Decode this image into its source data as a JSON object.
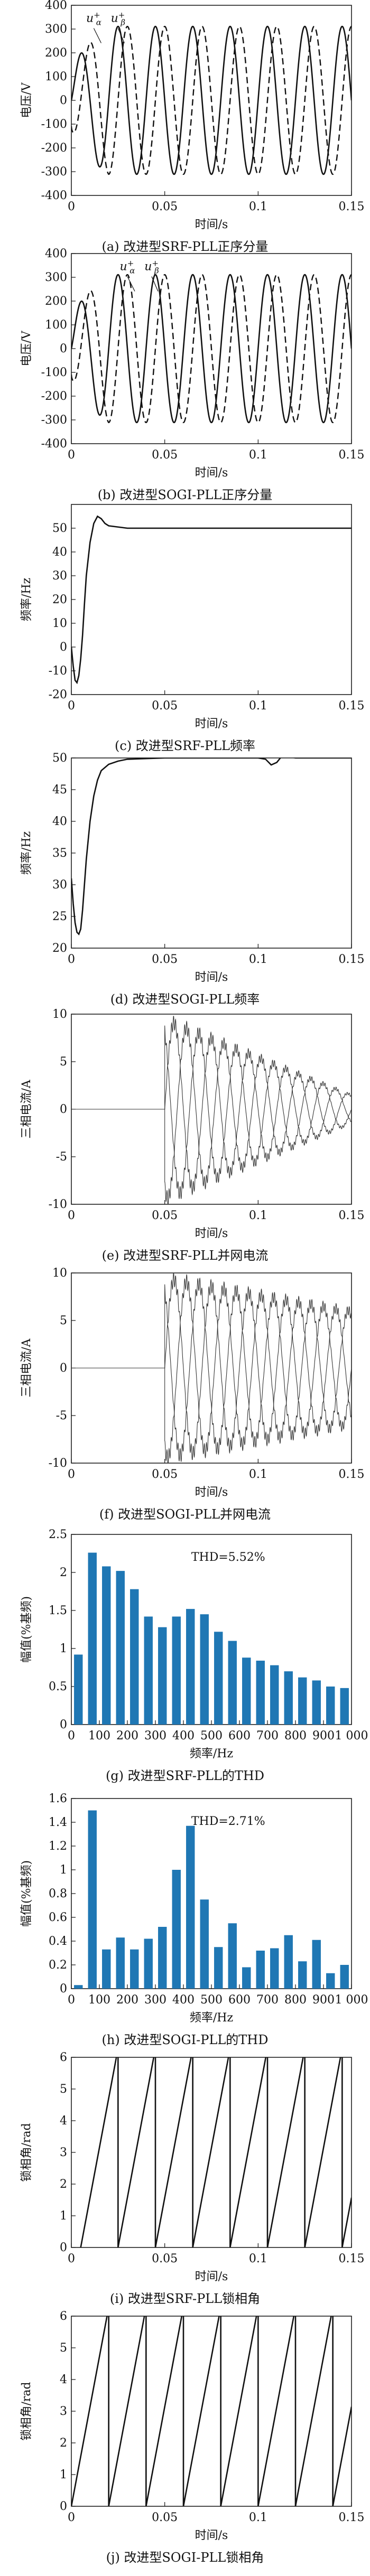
{
  "chart_data": [
    {
      "id": "a",
      "type": "line",
      "caption": "(a) 改进型SRF-PLL正序分量",
      "xlabel": "时间/s",
      "ylabel": "电压/V",
      "xlim": [
        0,
        0.15
      ],
      "ylim": [
        -400,
        400
      ],
      "xticks": [
        0,
        0.05,
        0.1,
        0.15
      ],
      "xtick_labels": [
        "0",
        "0.05",
        "0.1",
        "0.15"
      ],
      "yticks": [
        -400,
        -300,
        -200,
        -100,
        0,
        100,
        200,
        300,
        400
      ],
      "ytick_labels": [
        "-400",
        "-300",
        "-200",
        "-100",
        "0",
        "100",
        "200",
        "300",
        "400"
      ],
      "grid": false,
      "annotations": [
        {
          "text": "u",
          "sub": "α",
          "sup": "+",
          "x": 0.012,
          "y": 330
        },
        {
          "text": "u",
          "sub": "β",
          "sup": "+",
          "x": 0.025,
          "y": 330
        }
      ],
      "series": [
        {
          "style": "solid",
          "kind": "sine",
          "amplitude": 311,
          "freq": 50,
          "phase_deg": 0,
          "settle_time": 0.02,
          "x_start": 0,
          "x_end": 0.15
        },
        {
          "style": "dashed",
          "kind": "sine",
          "amplitude": 311,
          "freq": 50,
          "phase_deg": -90,
          "settle_time": 0.02,
          "x_start": 0,
          "x_end": 0.15
        }
      ]
    },
    {
      "id": "b",
      "type": "line",
      "caption": "(b) 改进型SOGI-PLL正序分量",
      "xlabel": "时间/s",
      "ylabel": "电压/V",
      "xlim": [
        0,
        0.15
      ],
      "ylim": [
        -400,
        400
      ],
      "xticks": [
        0,
        0.05,
        0.1,
        0.15
      ],
      "xtick_labels": [
        "0",
        "0.05",
        "0.1",
        "0.15"
      ],
      "yticks": [
        -400,
        -300,
        -200,
        -100,
        0,
        100,
        200,
        300,
        400
      ],
      "ytick_labels": [
        "-400",
        "-300",
        "-200",
        "-100",
        "0",
        "100",
        "200",
        "300",
        "400"
      ],
      "grid": false,
      "annotations": [
        {
          "text": "u",
          "sub": "α",
          "sup": "+",
          "x": 0.03,
          "y": 330
        },
        {
          "text": "u",
          "sub": "β",
          "sup": "+",
          "x": 0.043,
          "y": 330
        }
      ],
      "series": [
        {
          "style": "solid",
          "kind": "sine",
          "amplitude": 311,
          "freq": 50,
          "phase_deg": 0,
          "settle_time": 0.02,
          "x_start": 0,
          "x_end": 0.15
        },
        {
          "style": "dashed",
          "kind": "sine",
          "amplitude": 311,
          "freq": 50,
          "phase_deg": -90,
          "settle_time": 0.02,
          "x_start": 0,
          "x_end": 0.15
        }
      ]
    },
    {
      "id": "c",
      "type": "line",
      "caption": "(c) 改进型SRF-PLL频率",
      "xlabel": "时间/s",
      "ylabel": "频率/Hz",
      "xlim": [
        0,
        0.15
      ],
      "ylim": [
        -20,
        60
      ],
      "xticks": [
        0,
        0.05,
        0.1,
        0.15
      ],
      "xtick_labels": [
        "0",
        "0.05",
        "0.1",
        "0.15"
      ],
      "yticks": [
        -20,
        -10,
        0,
        10,
        20,
        30,
        40,
        50
      ],
      "ytick_labels": [
        "-20",
        "-10",
        "0",
        "10",
        "20",
        "30",
        "40",
        "50"
      ],
      "grid": false,
      "annotations": [],
      "series": [
        {
          "style": "solid",
          "kind": "points",
          "x": [
            0,
            0.001,
            0.002,
            0.003,
            0.004,
            0.005,
            0.006,
            0.007,
            0.008,
            0.01,
            0.012,
            0.014,
            0.016,
            0.018,
            0.02,
            0.025,
            0.03,
            0.05,
            0.1,
            0.15
          ],
          "y": [
            0,
            -8,
            -14,
            -15,
            -12,
            -5,
            5,
            18,
            30,
            44,
            52,
            55,
            54,
            52,
            51,
            50.5,
            50,
            50,
            50,
            50
          ]
        }
      ]
    },
    {
      "id": "d",
      "type": "line",
      "caption": "(d) 改进型SOGI-PLL频率",
      "xlabel": "时间/s",
      "ylabel": "频率/Hz",
      "xlim": [
        0,
        0.15
      ],
      "ylim": [
        20,
        50
      ],
      "xticks": [
        0,
        0.05,
        0.1,
        0.15
      ],
      "xtick_labels": [
        "0",
        "0.05",
        "0.1",
        "0.15"
      ],
      "yticks": [
        20,
        25,
        30,
        35,
        40,
        45,
        50
      ],
      "ytick_labels": [
        "20",
        "25",
        "30",
        "35",
        "40",
        "45",
        "50"
      ],
      "grid": false,
      "annotations": [],
      "series": [
        {
          "style": "solid",
          "kind": "points",
          "x": [
            0,
            0.001,
            0.002,
            0.003,
            0.004,
            0.005,
            0.006,
            0.007,
            0.008,
            0.01,
            0.012,
            0.014,
            0.016,
            0.02,
            0.025,
            0.03,
            0.05,
            0.1,
            0.104,
            0.107,
            0.11,
            0.113,
            0.12,
            0.15
          ],
          "y": [
            31,
            27,
            24,
            22.5,
            22.2,
            23,
            26,
            30,
            34,
            40,
            44,
            46.5,
            48,
            49,
            49.5,
            49.8,
            50,
            50,
            49.8,
            48.9,
            49.3,
            50.4,
            50,
            50
          ]
        }
      ]
    },
    {
      "id": "e",
      "type": "line",
      "caption": "(e) 改进型SRF-PLL并网电流",
      "xlabel": "时间/s",
      "ylabel": "三相电流/A",
      "xlim": [
        0,
        0.15
      ],
      "ylim": [
        -10,
        10
      ],
      "xticks": [
        0,
        0.05,
        0.1,
        0.15
      ],
      "xtick_labels": [
        "0",
        "0.05",
        "0.1",
        "0.15"
      ],
      "yticks": [
        -10,
        -5,
        0,
        5,
        10
      ],
      "ytick_labels": [
        "-10",
        "-5",
        "0",
        "5",
        "10"
      ],
      "grid": false,
      "annotations": [],
      "series": [
        {
          "style": "thin",
          "kind": "current",
          "start": 0.05,
          "amplitude": 9.5,
          "decay_to": 1.5,
          "freq": 50,
          "phase_deg": 0
        },
        {
          "style": "thin",
          "kind": "current",
          "start": 0.05,
          "amplitude": 9.5,
          "decay_to": 1.5,
          "freq": 50,
          "phase_deg": -120
        },
        {
          "style": "thin",
          "kind": "current",
          "start": 0.05,
          "amplitude": 9.5,
          "decay_to": 1.5,
          "freq": 50,
          "phase_deg": 120
        }
      ]
    },
    {
      "id": "f",
      "type": "line",
      "caption": "(f) 改进型SOGI-PLL并网电流",
      "xlabel": "时间/s",
      "ylabel": "三相电流/A",
      "xlim": [
        0,
        0.15
      ],
      "ylim": [
        -10,
        10
      ],
      "xticks": [
        0,
        0.05,
        0.1,
        0.15
      ],
      "xtick_labels": [
        "0",
        "0.05",
        "0.1",
        "0.15"
      ],
      "yticks": [
        -10,
        -5,
        0,
        5,
        10
      ],
      "ytick_labels": [
        "-10",
        "-5",
        "0",
        "5",
        "10"
      ],
      "grid": false,
      "annotations": [],
      "series": [
        {
          "style": "thin",
          "kind": "current",
          "start": 0.05,
          "amplitude": 9.5,
          "decay_to": 6,
          "freq": 50,
          "phase_deg": 0
        },
        {
          "style": "thin",
          "kind": "current",
          "start": 0.05,
          "amplitude": 9.5,
          "decay_to": 6,
          "freq": 50,
          "phase_deg": -120
        },
        {
          "style": "thin",
          "kind": "current",
          "start": 0.05,
          "amplitude": 9.5,
          "decay_to": 6,
          "freq": 50,
          "phase_deg": 120
        }
      ]
    },
    {
      "id": "g",
      "type": "bar",
      "caption": "(g) 改进型SRF-PLL的THD",
      "xlabel": "频率/Hz",
      "ylabel": "幅值(%基频)",
      "annotation": "THD=5.52%",
      "bar_color": "#1f77b4",
      "xlim": [
        0,
        1000
      ],
      "ylim": [
        0,
        2.5
      ],
      "xticks": [
        0,
        100,
        200,
        300,
        400,
        500,
        600,
        700,
        800,
        900,
        1000
      ],
      "xtick_labels": [
        "0",
        "100",
        "200",
        "300",
        "400",
        "500",
        "600",
        "700",
        "800",
        "900",
        "1 000"
      ],
      "yticks": [
        0,
        0.5,
        1,
        1.5,
        2,
        2.5
      ],
      "ytick_labels": [
        "0",
        "0.5",
        "1",
        "1.5",
        "2",
        "2.5"
      ],
      "grid": false,
      "x": [
        0,
        50,
        100,
        150,
        200,
        250,
        300,
        350,
        400,
        450,
        500,
        550,
        600,
        650,
        700,
        750,
        800,
        850,
        900,
        950
      ],
      "values": [
        0.92,
        2.26,
        2.08,
        2.02,
        1.78,
        1.42,
        1.28,
        1.42,
        1.52,
        1.45,
        1.22,
        1.1,
        0.88,
        0.84,
        0.78,
        0.7,
        0.62,
        0.58,
        0.5,
        0.48
      ]
    },
    {
      "id": "h",
      "type": "bar",
      "caption": "(h) 改进型SOGI-PLL的THD",
      "xlabel": "频率/Hz",
      "ylabel": "幅值(%基频)",
      "annotation": "THD=2.71%",
      "bar_color": "#1f77b4",
      "xlim": [
        0,
        1000
      ],
      "ylim": [
        0,
        1.6
      ],
      "xticks": [
        0,
        100,
        200,
        300,
        400,
        500,
        600,
        700,
        800,
        900,
        1000
      ],
      "xtick_labels": [
        "0",
        "100",
        "200",
        "300",
        "400",
        "500",
        "600",
        "700",
        "800",
        "900",
        "1 000"
      ],
      "yticks": [
        0,
        0.2,
        0.4,
        0.6,
        0.8,
        1,
        1.2,
        1.4,
        1.6
      ],
      "ytick_labels": [
        "0",
        "0.2",
        "0.4",
        "0.6",
        "0.8",
        "1",
        "1.2",
        "1.4",
        "1.6"
      ],
      "grid": false,
      "x": [
        0,
        50,
        100,
        150,
        200,
        250,
        300,
        350,
        400,
        450,
        500,
        550,
        600,
        650,
        700,
        750,
        800,
        850,
        900,
        950
      ],
      "values": [
        0.03,
        1.5,
        0.33,
        0.43,
        0.33,
        0.42,
        0.52,
        1.0,
        1.37,
        0.75,
        0.35,
        0.55,
        0.18,
        0.32,
        0.34,
        0.45,
        0.23,
        0.41,
        0.13,
        0.2
      ]
    },
    {
      "id": "i",
      "type": "line",
      "caption": "(i) 改进型SRF-PLL锁相角",
      "xlabel": "时间/s",
      "ylabel": "锁相角/rad",
      "xlim": [
        0,
        0.15
      ],
      "ylim": [
        0,
        6
      ],
      "xticks": [
        0,
        0.05,
        0.1,
        0.15
      ],
      "xtick_labels": [
        "0",
        "0.05",
        "0.1",
        "0.15"
      ],
      "yticks": [
        0,
        1,
        2,
        3,
        4,
        5,
        6
      ],
      "ytick_labels": [
        "0",
        "1",
        "2",
        "3",
        "4",
        "5",
        "6"
      ],
      "grid": false,
      "annotations": [],
      "series": [
        {
          "style": "solid",
          "kind": "sawtooth",
          "max": 6.2832,
          "freq": 50,
          "x_start": 0.005,
          "x_end": 0.15
        }
      ]
    },
    {
      "id": "j",
      "type": "line",
      "caption": "(j) 改进型SOGI-PLL锁相角",
      "xlabel": "时间/s",
      "ylabel": "锁相角/rad",
      "xlim": [
        0,
        0.15
      ],
      "ylim": [
        0,
        6
      ],
      "xticks": [
        0,
        0.05,
        0.1,
        0.15
      ],
      "xtick_labels": [
        "0",
        "0.05",
        "0.1",
        "0.15"
      ],
      "yticks": [
        0,
        1,
        2,
        3,
        4,
        5,
        6
      ],
      "ytick_labels": [
        "0",
        "1",
        "2",
        "3",
        "4",
        "5",
        "6"
      ],
      "grid": false,
      "annotations": [],
      "series": [
        {
          "style": "solid",
          "kind": "sawtooth",
          "max": 6.2832,
          "freq": 50,
          "x_start": 0,
          "x_end": 0.15
        }
      ]
    }
  ]
}
